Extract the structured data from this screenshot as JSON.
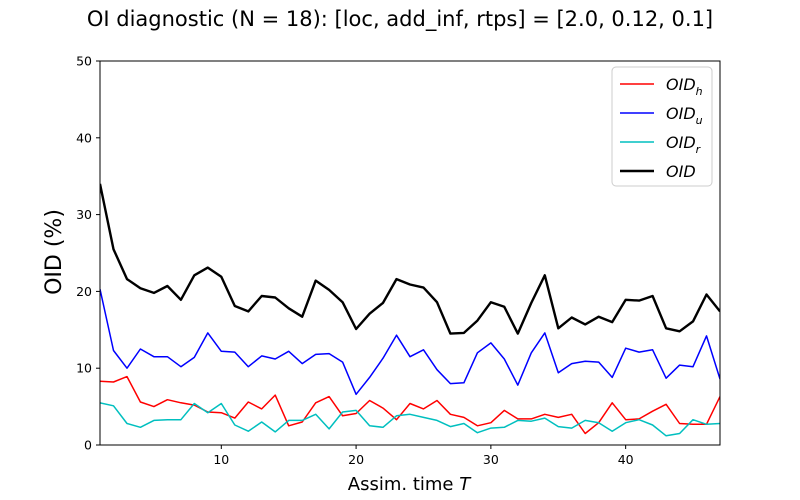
{
  "chart_data": {
    "type": "line",
    "title": "OI diagnostic  (N = 18): [loc, add_inf, rtps] = [2.0, 0.12, 0.1]",
    "xlabel": "Assim. time T",
    "xlabel_main": "Assim. time ",
    "xlabel_var": "T",
    "ylabel": "OID (%)",
    "xlim": [
      1,
      47
    ],
    "ylim": [
      0,
      50
    ],
    "xticks": [
      10,
      20,
      30,
      40
    ],
    "yticks": [
      0,
      10,
      20,
      30,
      40,
      50
    ],
    "grid": false,
    "legend_position": "top-right",
    "x": [
      1,
      2,
      3,
      4,
      5,
      6,
      7,
      8,
      9,
      10,
      11,
      12,
      13,
      14,
      15,
      16,
      17,
      18,
      19,
      20,
      21,
      22,
      23,
      24,
      25,
      26,
      27,
      28,
      29,
      30,
      31,
      32,
      33,
      34,
      35,
      36,
      37,
      38,
      39,
      40,
      41,
      42,
      43,
      44,
      45,
      46,
      47
    ],
    "series": [
      {
        "name": "OID_h",
        "label_main": "OID",
        "label_sub": "h",
        "color": "#ff0000",
        "width": 1.5,
        "values": [
          8.3,
          8.2,
          8.9,
          5.6,
          5.0,
          5.9,
          5.5,
          5.2,
          4.3,
          4.2,
          3.5,
          5.6,
          4.7,
          6.5,
          2.5,
          3.0,
          5.5,
          6.3,
          3.8,
          4.1,
          5.8,
          4.8,
          3.3,
          5.4,
          4.7,
          5.8,
          4.0,
          3.6,
          2.5,
          2.9,
          4.5,
          3.4,
          3.4,
          4.0,
          3.6,
          4.0,
          1.5,
          2.9,
          5.5,
          3.3,
          3.4,
          4.4,
          5.3,
          2.8,
          2.7,
          2.7,
          6.3
        ]
      },
      {
        "name": "OID_u",
        "label_main": "OID",
        "label_sub": "u",
        "color": "#0000ff",
        "width": 1.5,
        "values": [
          20.3,
          12.3,
          10.0,
          12.5,
          11.5,
          11.5,
          10.2,
          11.4,
          14.6,
          12.2,
          12.1,
          10.2,
          11.6,
          11.2,
          12.2,
          10.6,
          11.8,
          11.9,
          10.8,
          6.6,
          8.8,
          11.3,
          14.3,
          11.5,
          12.4,
          9.8,
          8.0,
          8.1,
          12.0,
          13.3,
          11.2,
          7.8,
          12.0,
          14.6,
          9.4,
          10.6,
          10.9,
          10.8,
          8.8,
          12.6,
          12.1,
          12.4,
          8.7,
          10.4,
          10.2,
          14.2,
          8.6
        ]
      },
      {
        "name": "OID_r",
        "label_main": "OID",
        "label_sub": "r",
        "color": "#00bfbf",
        "width": 1.5,
        "values": [
          5.5,
          5.1,
          2.8,
          2.3,
          3.2,
          3.3,
          3.3,
          5.4,
          4.2,
          5.4,
          2.6,
          1.8,
          3.0,
          1.7,
          3.2,
          3.2,
          4.0,
          2.1,
          4.3,
          4.5,
          2.5,
          2.3,
          3.8,
          4.0,
          3.6,
          3.2,
          2.4,
          2.8,
          1.6,
          2.2,
          2.3,
          3.2,
          3.1,
          3.5,
          2.4,
          2.2,
          3.2,
          2.9,
          1.8,
          2.9,
          3.3,
          2.6,
          1.2,
          1.5,
          3.3,
          2.7,
          2.8
        ]
      },
      {
        "name": "OID",
        "label_main": "OID",
        "label_sub": "",
        "color": "#000000",
        "width": 2.4,
        "values": [
          34.0,
          25.5,
          21.6,
          20.4,
          19.8,
          20.7,
          18.9,
          22.1,
          23.1,
          21.9,
          18.1,
          17.4,
          19.4,
          19.2,
          17.8,
          16.7,
          21.4,
          20.2,
          18.6,
          15.1,
          17.1,
          18.5,
          21.6,
          20.9,
          20.5,
          18.6,
          14.5,
          14.6,
          16.2,
          18.6,
          18.0,
          14.5,
          18.5,
          22.1,
          15.2,
          16.6,
          15.7,
          16.7,
          16.0,
          18.9,
          18.8,
          19.4,
          15.2,
          14.8,
          16.1,
          19.6,
          17.4
        ]
      }
    ]
  }
}
